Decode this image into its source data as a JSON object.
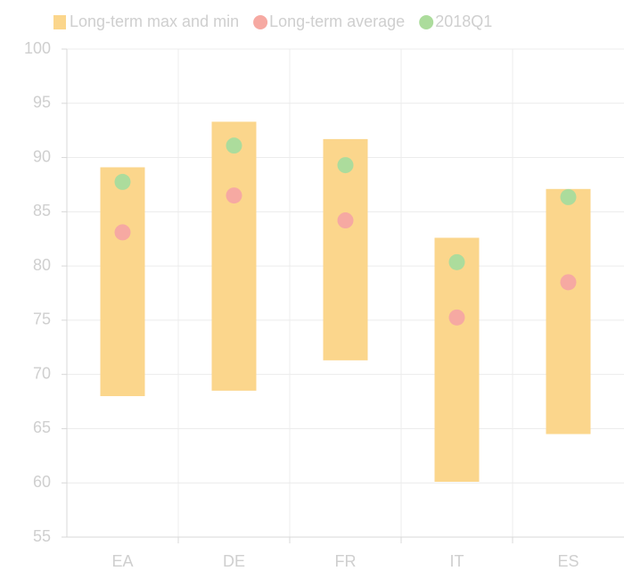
{
  "chart_data": {
    "type": "bar",
    "categories": [
      "EA",
      "DE",
      "FR",
      "IT",
      "ES"
    ],
    "series": [
      {
        "name": "Long-term max and min",
        "type": "range",
        "color": "#fbd68c",
        "values": [
          [
            68.0,
            89.1
          ],
          [
            68.5,
            93.3
          ],
          [
            71.3,
            91.7
          ],
          [
            60.1,
            82.6
          ],
          [
            64.5,
            87.1
          ]
        ]
      },
      {
        "name": "Long-term average",
        "type": "dot",
        "color": "#f6a9a2",
        "values": [
          83.1,
          86.5,
          84.2,
          75.25,
          78.5
        ]
      },
      {
        "name": "2018Q1",
        "type": "dot",
        "color": "#acdc9c",
        "values": [
          87.75,
          91.1,
          89.3,
          80.35,
          86.35
        ]
      }
    ],
    "ylim": [
      55,
      100
    ],
    "yticks": [
      55,
      60,
      65,
      70,
      75,
      80,
      85,
      90,
      95,
      100
    ],
    "grid": true,
    "legend": "top"
  }
}
